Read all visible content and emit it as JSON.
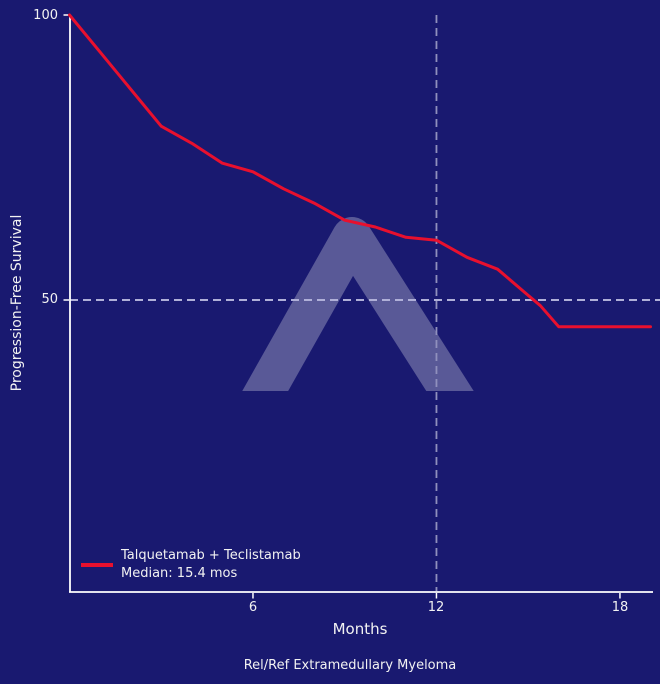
{
  "colors": {
    "background": "#191970",
    "axis": "#ffffff",
    "text": "#f2f2f2",
    "series_red": "#e8102e",
    "dashed_horizontal": "#b0b0d8",
    "dashed_vertical": "#9090bd",
    "watermark": "rgba(255,255,255,0.28)"
  },
  "chart_data": {
    "type": "line",
    "title": "",
    "xlabel": "Months",
    "ylabel": "Progression-Free Survival",
    "caption": "Rel/Ref Extramedullary Myeloma",
    "xlim": [
      0,
      19.3
    ],
    "ylim": [
      0,
      100
    ],
    "grid": false,
    "legend_position": "lower-left",
    "xticks": [
      {
        "value": 6,
        "label": "6"
      },
      {
        "value": 12,
        "label": "12"
      },
      {
        "value": 18,
        "label": "18"
      }
    ],
    "yticks": [
      {
        "value": 100,
        "label": "100"
      },
      {
        "value": 50,
        "label": "50"
      }
    ],
    "reference_lines": {
      "horizontal_at_survival_pct": 50,
      "vertical_at_month": 12
    },
    "legend": {
      "series_label": "Talquetamab + Teclistamab",
      "median_label": "Median: 15.4 mos"
    },
    "series": [
      {
        "name": "Talquetamab + Teclistamab",
        "color": "#e8102e",
        "median_months": 15.4,
        "x_unit": "months",
        "y_unit": "percent_progression_free",
        "points": [
          [
            0,
            100
          ],
          [
            1,
            93.5
          ],
          [
            3,
            80.5
          ],
          [
            4,
            77.5
          ],
          [
            5,
            74
          ],
          [
            6,
            72.5
          ],
          [
            7,
            69.5
          ],
          [
            8,
            67
          ],
          [
            9,
            64
          ],
          [
            10,
            62.8
          ],
          [
            11,
            61
          ],
          [
            12,
            60.5
          ],
          [
            13,
            57.5
          ],
          [
            14,
            55.4
          ],
          [
            15,
            50.8
          ],
          [
            15.4,
            49
          ],
          [
            16,
            45.3
          ],
          [
            19,
            45.3
          ]
        ]
      }
    ]
  }
}
